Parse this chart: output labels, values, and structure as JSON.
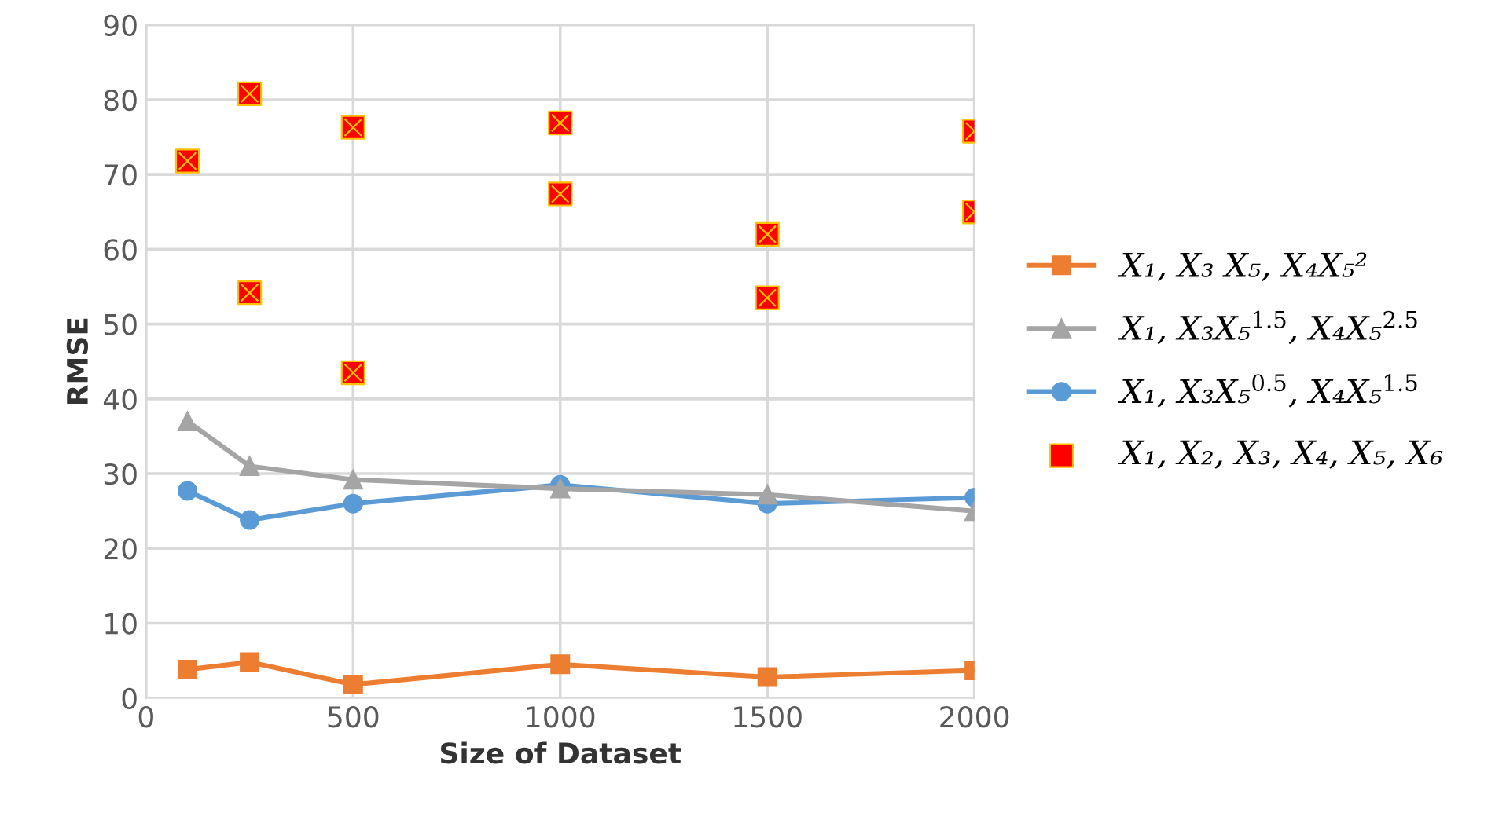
{
  "chart_data": {
    "type": "line",
    "xlabel": "Size of Dataset",
    "ylabel": "RMSE",
    "xlim": [
      0,
      2000
    ],
    "xticks": [
      0,
      500,
      1000,
      1500,
      2000
    ],
    "ylim": [
      0,
      90
    ],
    "yticks": [
      0,
      10,
      20,
      30,
      40,
      50,
      60,
      70,
      80,
      90
    ],
    "grid": true,
    "legend": "right",
    "line_style": "solid",
    "series": [
      {
        "name": "X₁, X₃ X₅, X₄X₅²",
        "color": "#ed7d31",
        "marker": "square",
        "x": [
          100,
          250,
          500,
          1000,
          1500,
          2000
        ],
        "values": [
          3.8,
          4.8,
          1.8,
          4.5,
          2.8,
          3.7
        ]
      },
      {
        "name": "X₁, X₃X₅$^{1.5}$, X₄X₅$^{2.5}$",
        "color": "#a5a5a5",
        "marker": "triangle",
        "x": [
          100,
          250,
          500,
          1000,
          1500,
          2000
        ],
        "values": [
          37,
          31,
          29.2,
          28,
          27.2,
          25
        ]
      },
      {
        "name": "X₁, X₃X₅$^{0.5}$, X₄X₅$^{1.5}$",
        "color": "#5b9bd5",
        "marker": "circle",
        "x": [
          100,
          250,
          500,
          1000,
          1500,
          2000
        ],
        "values": [
          27.7,
          23.8,
          26,
          28.5,
          26,
          26.8
        ]
      },
      {
        "name": "X₁, X₂, X₃, X₄, X₅, X₆",
        "color": "#ff0000",
        "type": "scatter",
        "marker": "square",
        "x": [
          100,
          250,
          250,
          500,
          500,
          1000,
          1000,
          1500,
          1500,
          2000,
          2000
        ],
        "values": [
          71.8,
          80.8,
          54.2,
          76.3,
          43.5,
          76.9,
          67.4,
          62,
          53.5,
          75.8,
          65
        ]
      }
    ]
  }
}
